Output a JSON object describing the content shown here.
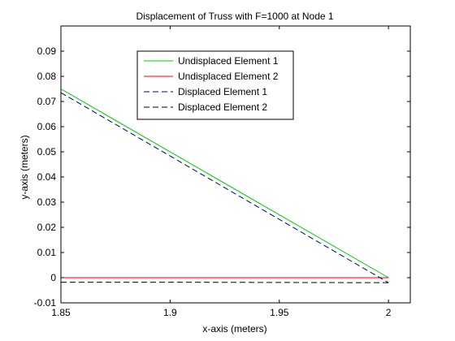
{
  "chart_data": {
    "type": "line",
    "title": "Displacement of Truss with F=1000 at Node 1",
    "xlabel": "x-axis (meters)",
    "ylabel": "y-axis (meters)",
    "xlim": [
      1.85,
      2.01
    ],
    "ylim": [
      -0.01,
      0.1
    ],
    "xticks": [
      1.85,
      1.9,
      1.95,
      2.0
    ],
    "xtick_labels": [
      "1.85",
      "1.9",
      "1.95",
      "2"
    ],
    "yticks": [
      -0.01,
      0,
      0.01,
      0.02,
      0.03,
      0.04,
      0.05,
      0.06,
      0.07,
      0.08,
      0.09
    ],
    "ytick_labels": [
      "-0.01",
      "0",
      "0.01",
      "0.02",
      "0.03",
      "0.04",
      "0.05",
      "0.06",
      "0.07",
      "0.08",
      "0.09"
    ],
    "grid": false,
    "legend_position": "top-center",
    "series": [
      {
        "name": "Undisplaced Element 1",
        "color": "#00cc00",
        "style": "solid",
        "x": [
          1.85,
          2.0
        ],
        "y": [
          0.075,
          0.0
        ]
      },
      {
        "name": "Undisplaced Element 2",
        "color": "#ff0000",
        "style": "solid",
        "x": [
          1.85,
          2.0
        ],
        "y": [
          0.0,
          0.0
        ]
      },
      {
        "name": "Displaced Element 1",
        "color": "#000080",
        "style": "dashed",
        "x": [
          1.85,
          2.0
        ],
        "y": [
          0.0735,
          -0.002
        ]
      },
      {
        "name": "Displaced Element 2",
        "color": "#000000",
        "style": "dashed",
        "x": [
          1.85,
          1.9,
          1.95,
          2.0
        ],
        "y": [
          -0.0018,
          -0.0018,
          -0.0019,
          -0.002
        ]
      }
    ]
  }
}
